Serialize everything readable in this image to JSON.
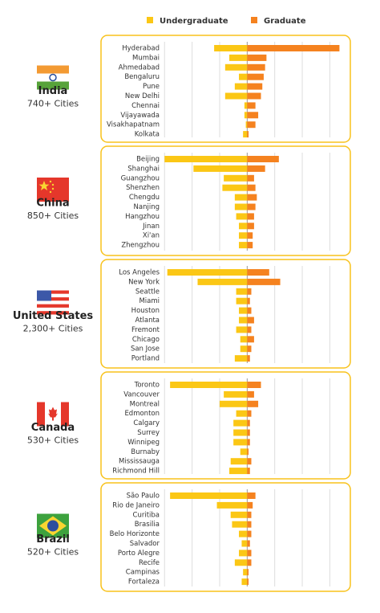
{
  "chart_data": [
    {
      "type": "bar",
      "orientation": "horizontal",
      "title": "India",
      "subtitle": "740+ Cities",
      "categories": [
        "Hyderabad",
        "Mumbai",
        "Ahmedabad",
        "Bengaluru",
        "Pune",
        "New Delhi",
        "Chennai",
        "Vijayawada",
        "Visakhapatnam",
        "Kolkata"
      ],
      "series": [
        {
          "name": "Undergraduate",
          "color": "#fbc715",
          "values": [
            -1.2,
            -0.65,
            -0.8,
            -0.3,
            -0.45,
            -0.8,
            -0.1,
            -0.1,
            -0.05,
            -0.15
          ]
        },
        {
          "name": "Graduate",
          "color": "#f5821f",
          "values": [
            3.35,
            0.7,
            0.65,
            0.6,
            0.55,
            0.5,
            0.3,
            0.4,
            0.3,
            0.05
          ]
        }
      ],
      "xlim": [
        -4.9,
        3.6
      ],
      "xticks": [
        -3,
        -2,
        -1,
        0,
        1,
        2,
        3
      ],
      "grid": true
    },
    {
      "type": "bar",
      "orientation": "horizontal",
      "title": "China",
      "subtitle": "850+ Cities",
      "categories": [
        "Beijing",
        "Shanghai",
        "Guangzhou",
        "Shenzhen",
        "Chengdu",
        "Nanjing",
        "Hangzhou",
        "Jinan",
        "Xi'an",
        "Zhengzhou"
      ],
      "series": [
        {
          "name": "Undergraduate",
          "color": "#fbc715",
          "values": [
            -3.0,
            -1.95,
            -0.85,
            -0.9,
            -0.45,
            -0.45,
            -0.4,
            -0.3,
            -0.3,
            -0.3
          ]
        },
        {
          "name": "Graduate",
          "color": "#f5821f",
          "values": [
            1.15,
            0.65,
            0.25,
            0.3,
            0.35,
            0.3,
            0.25,
            0.25,
            0.2,
            0.2
          ]
        }
      ],
      "xlim": [
        -4.9,
        3.6
      ],
      "xticks": [
        -3,
        -2,
        -1,
        0,
        1,
        2,
        3
      ],
      "grid": true
    },
    {
      "type": "bar",
      "orientation": "horizontal",
      "title": "United States",
      "subtitle": "2,300+ Cities",
      "categories": [
        "Los Angeles",
        "New York",
        "Seattle",
        "Miami",
        "Houston",
        "Atlanta",
        "Fremont",
        "Chicago",
        "San Jose",
        "Portland"
      ],
      "series": [
        {
          "name": "Undergraduate",
          "color": "#fbc715",
          "values": [
            -2.9,
            -1.8,
            -0.4,
            -0.4,
            -0.3,
            -0.3,
            -0.4,
            -0.25,
            -0.25,
            -0.45
          ]
        },
        {
          "name": "Graduate",
          "color": "#f5821f",
          "values": [
            0.8,
            1.2,
            0.15,
            0.1,
            0.15,
            0.25,
            0.15,
            0.25,
            0.15,
            0.1
          ]
        }
      ],
      "xlim": [
        -4.9,
        3.6
      ],
      "xticks": [
        -3,
        -2,
        -1,
        0,
        1,
        2,
        3
      ],
      "grid": true
    },
    {
      "type": "bar",
      "orientation": "horizontal",
      "title": "Canada",
      "subtitle": "530+ Cities",
      "categories": [
        "Toronto",
        "Vancouver",
        "Montreal",
        "Edmonton",
        "Calgary",
        "Surrey",
        "Winnipeg",
        "Burnaby",
        "Mississauga",
        "Richmond Hill"
      ],
      "series": [
        {
          "name": "Undergraduate",
          "color": "#fbc715",
          "values": [
            -2.8,
            -0.85,
            -1.0,
            -0.4,
            -0.5,
            -0.5,
            -0.5,
            -0.25,
            -0.6,
            -0.65
          ]
        },
        {
          "name": "Graduate",
          "color": "#f5821f",
          "values": [
            0.5,
            0.25,
            0.4,
            0.15,
            0.1,
            0.1,
            0.1,
            0.05,
            0.15,
            0.1
          ]
        }
      ],
      "xlim": [
        -4.9,
        3.6
      ],
      "xticks": [
        -3,
        -2,
        -1,
        0,
        1,
        2,
        3
      ],
      "grid": true
    },
    {
      "type": "bar",
      "orientation": "horizontal",
      "title": "Brazil",
      "subtitle": "520+ Cities",
      "categories": [
        "São Paulo",
        "Rio de Janeiro",
        "Curitiba",
        "Brasilia",
        "Belo Horizonte",
        "Salvador",
        "Porto Alegre",
        "Recife",
        "Campinas",
        "Fortaleza"
      ],
      "series": [
        {
          "name": "Undergraduate",
          "color": "#fbc715",
          "values": [
            -2.8,
            -1.1,
            -0.6,
            -0.55,
            -0.3,
            -0.2,
            -0.3,
            -0.45,
            -0.15,
            -0.2
          ]
        },
        {
          "name": "Graduate",
          "color": "#f5821f",
          "values": [
            0.3,
            0.2,
            0.15,
            0.15,
            0.15,
            0.1,
            0.15,
            0.15,
            0.05,
            0.05
          ]
        }
      ],
      "xlim": [
        -4.9,
        3.6
      ],
      "xticks": [
        -3,
        -2,
        -1,
        0,
        1,
        2,
        3
      ],
      "grid": true
    }
  ]
}
